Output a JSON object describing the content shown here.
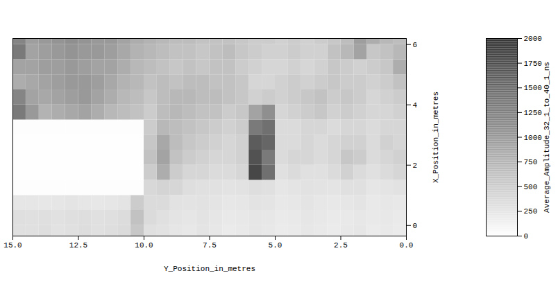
{
  "chart_data": {
    "type": "heatmap",
    "xlabel": "Y_Position_in_metres",
    "ylabel": "X_Position_in_metres",
    "xlim": [
      15,
      0
    ],
    "xticks": [
      {
        "value": 15,
        "label": "15.0"
      },
      12.5,
      {
        "value": 10,
        "label": "10.0"
      },
      7.5,
      {
        "value": 5,
        "label": "5.0"
      },
      2.5,
      {
        "value": 0,
        "label": "0.0"
      }
    ],
    "ylim": [
      -0.35,
      6.2
    ],
    "yticks": [
      0,
      2,
      4,
      6
    ],
    "x_bins": [
      0,
      0.5,
      1,
      1.5,
      2,
      2.5,
      3,
      3.5,
      4,
      4.5,
      5,
      5.5,
      6,
      6.5,
      7,
      7.5,
      8,
      8.5,
      9,
      9.5,
      10,
      10.5,
      11,
      11.5,
      12,
      12.5,
      13,
      13.5,
      14,
      14.5,
      15
    ],
    "y_bins": [
      -0.35,
      0,
      0.5,
      1,
      1.5,
      2,
      2.5,
      3,
      3.5,
      4,
      4.5,
      5,
      5.5,
      6,
      6.2
    ],
    "values": [
      [
        200,
        220,
        200,
        250,
        230,
        200,
        220,
        240,
        210,
        200,
        230,
        250,
        220,
        200,
        240,
        260,
        230,
        250,
        280,
        300,
        550,
        350,
        320,
        300,
        330,
        300,
        280,
        320,
        300,
        300
      ],
      [
        210,
        230,
        220,
        240,
        220,
        210,
        230,
        250,
        220,
        210,
        240,
        250,
        230,
        220,
        250,
        270,
        250,
        260,
        300,
        350,
        600,
        340,
        310,
        300,
        320,
        310,
        290,
        310,
        300,
        310
      ],
      [
        230,
        240,
        220,
        260,
        250,
        230,
        240,
        260,
        240,
        230,
        260,
        270,
        250,
        240,
        260,
        280,
        270,
        280,
        350,
        350,
        500,
        260,
        250,
        240,
        250,
        260,
        250,
        240,
        250,
        250
      ],
      [
        280,
        260,
        250,
        300,
        300,
        260,
        270,
        280,
        260,
        250,
        300,
        320,
        280,
        270,
        290,
        300,
        320,
        400,
        420,
        380,
        20,
        20,
        20,
        20,
        20,
        20,
        20,
        20,
        20,
        20
      ],
      [
        400,
        350,
        300,
        350,
        450,
        350,
        300,
        300,
        350,
        300,
        1400,
        1800,
        400,
        350,
        350,
        400,
        400,
        500,
        800,
        500,
        10,
        10,
        10,
        10,
        10,
        10,
        10,
        10,
        10,
        10
      ],
      [
        450,
        400,
        350,
        500,
        550,
        400,
        350,
        400,
        400,
        350,
        1300,
        1700,
        450,
        400,
        400,
        450,
        500,
        600,
        900,
        600,
        10,
        10,
        10,
        10,
        10,
        10,
        10,
        10,
        10,
        10
      ],
      [
        400,
        450,
        350,
        450,
        450,
        400,
        350,
        400,
        350,
        350,
        1500,
        1600,
        450,
        400,
        450,
        500,
        550,
        650,
        850,
        550,
        10,
        10,
        10,
        10,
        10,
        10,
        10,
        10,
        10,
        10
      ],
      [
        400,
        400,
        350,
        400,
        400,
        350,
        400,
        400,
        350,
        350,
        1400,
        1300,
        500,
        450,
        500,
        550,
        600,
        650,
        700,
        500,
        20,
        20,
        20,
        20,
        20,
        20,
        20,
        20,
        20,
        20
      ],
      [
        450,
        400,
        400,
        450,
        500,
        450,
        550,
        500,
        450,
        400,
        1100,
        900,
        550,
        500,
        600,
        600,
        650,
        700,
        650,
        500,
        600,
        650,
        700,
        800,
        900,
        850,
        800,
        750,
        1000,
        1300
      ],
      [
        500,
        450,
        400,
        500,
        550,
        500,
        600,
        550,
        500,
        450,
        500,
        450,
        550,
        600,
        650,
        650,
        700,
        700,
        650,
        550,
        650,
        700,
        800,
        900,
        1000,
        950,
        900,
        850,
        900,
        1200
      ],
      [
        600,
        500,
        450,
        500,
        500,
        550,
        500,
        450,
        500,
        450,
        400,
        400,
        550,
        600,
        600,
        650,
        650,
        600,
        650,
        600,
        700,
        750,
        850,
        950,
        1000,
        1000,
        950,
        900,
        850,
        800
      ],
      [
        800,
        550,
        500,
        450,
        500,
        550,
        450,
        400,
        450,
        400,
        400,
        450,
        500,
        600,
        600,
        550,
        600,
        550,
        600,
        650,
        700,
        800,
        900,
        900,
        950,
        1000,
        950,
        950,
        900,
        900
      ],
      [
        700,
        600,
        550,
        900,
        700,
        600,
        450,
        450,
        500,
        450,
        450,
        500,
        550,
        650,
        600,
        550,
        600,
        600,
        650,
        700,
        750,
        850,
        950,
        1000,
        1000,
        1050,
        1000,
        950,
        900,
        1300
      ],
      [
        650,
        700,
        800,
        950,
        650,
        550,
        500,
        450,
        500,
        450,
        500,
        500,
        550,
        600,
        600,
        600,
        650,
        650,
        700,
        750,
        800,
        900,
        1000,
        1000,
        1050,
        1100,
        1050,
        1000,
        950,
        1200
      ]
    ],
    "colorbar_label": "Average_Amplitude_32_1_to_40_1_ns",
    "colorbar_range": [
      0,
      2000
    ],
    "colorbar_ticks": [
      0,
      250,
      500,
      750,
      1000,
      1250,
      1500,
      1750,
      2000
    ]
  }
}
